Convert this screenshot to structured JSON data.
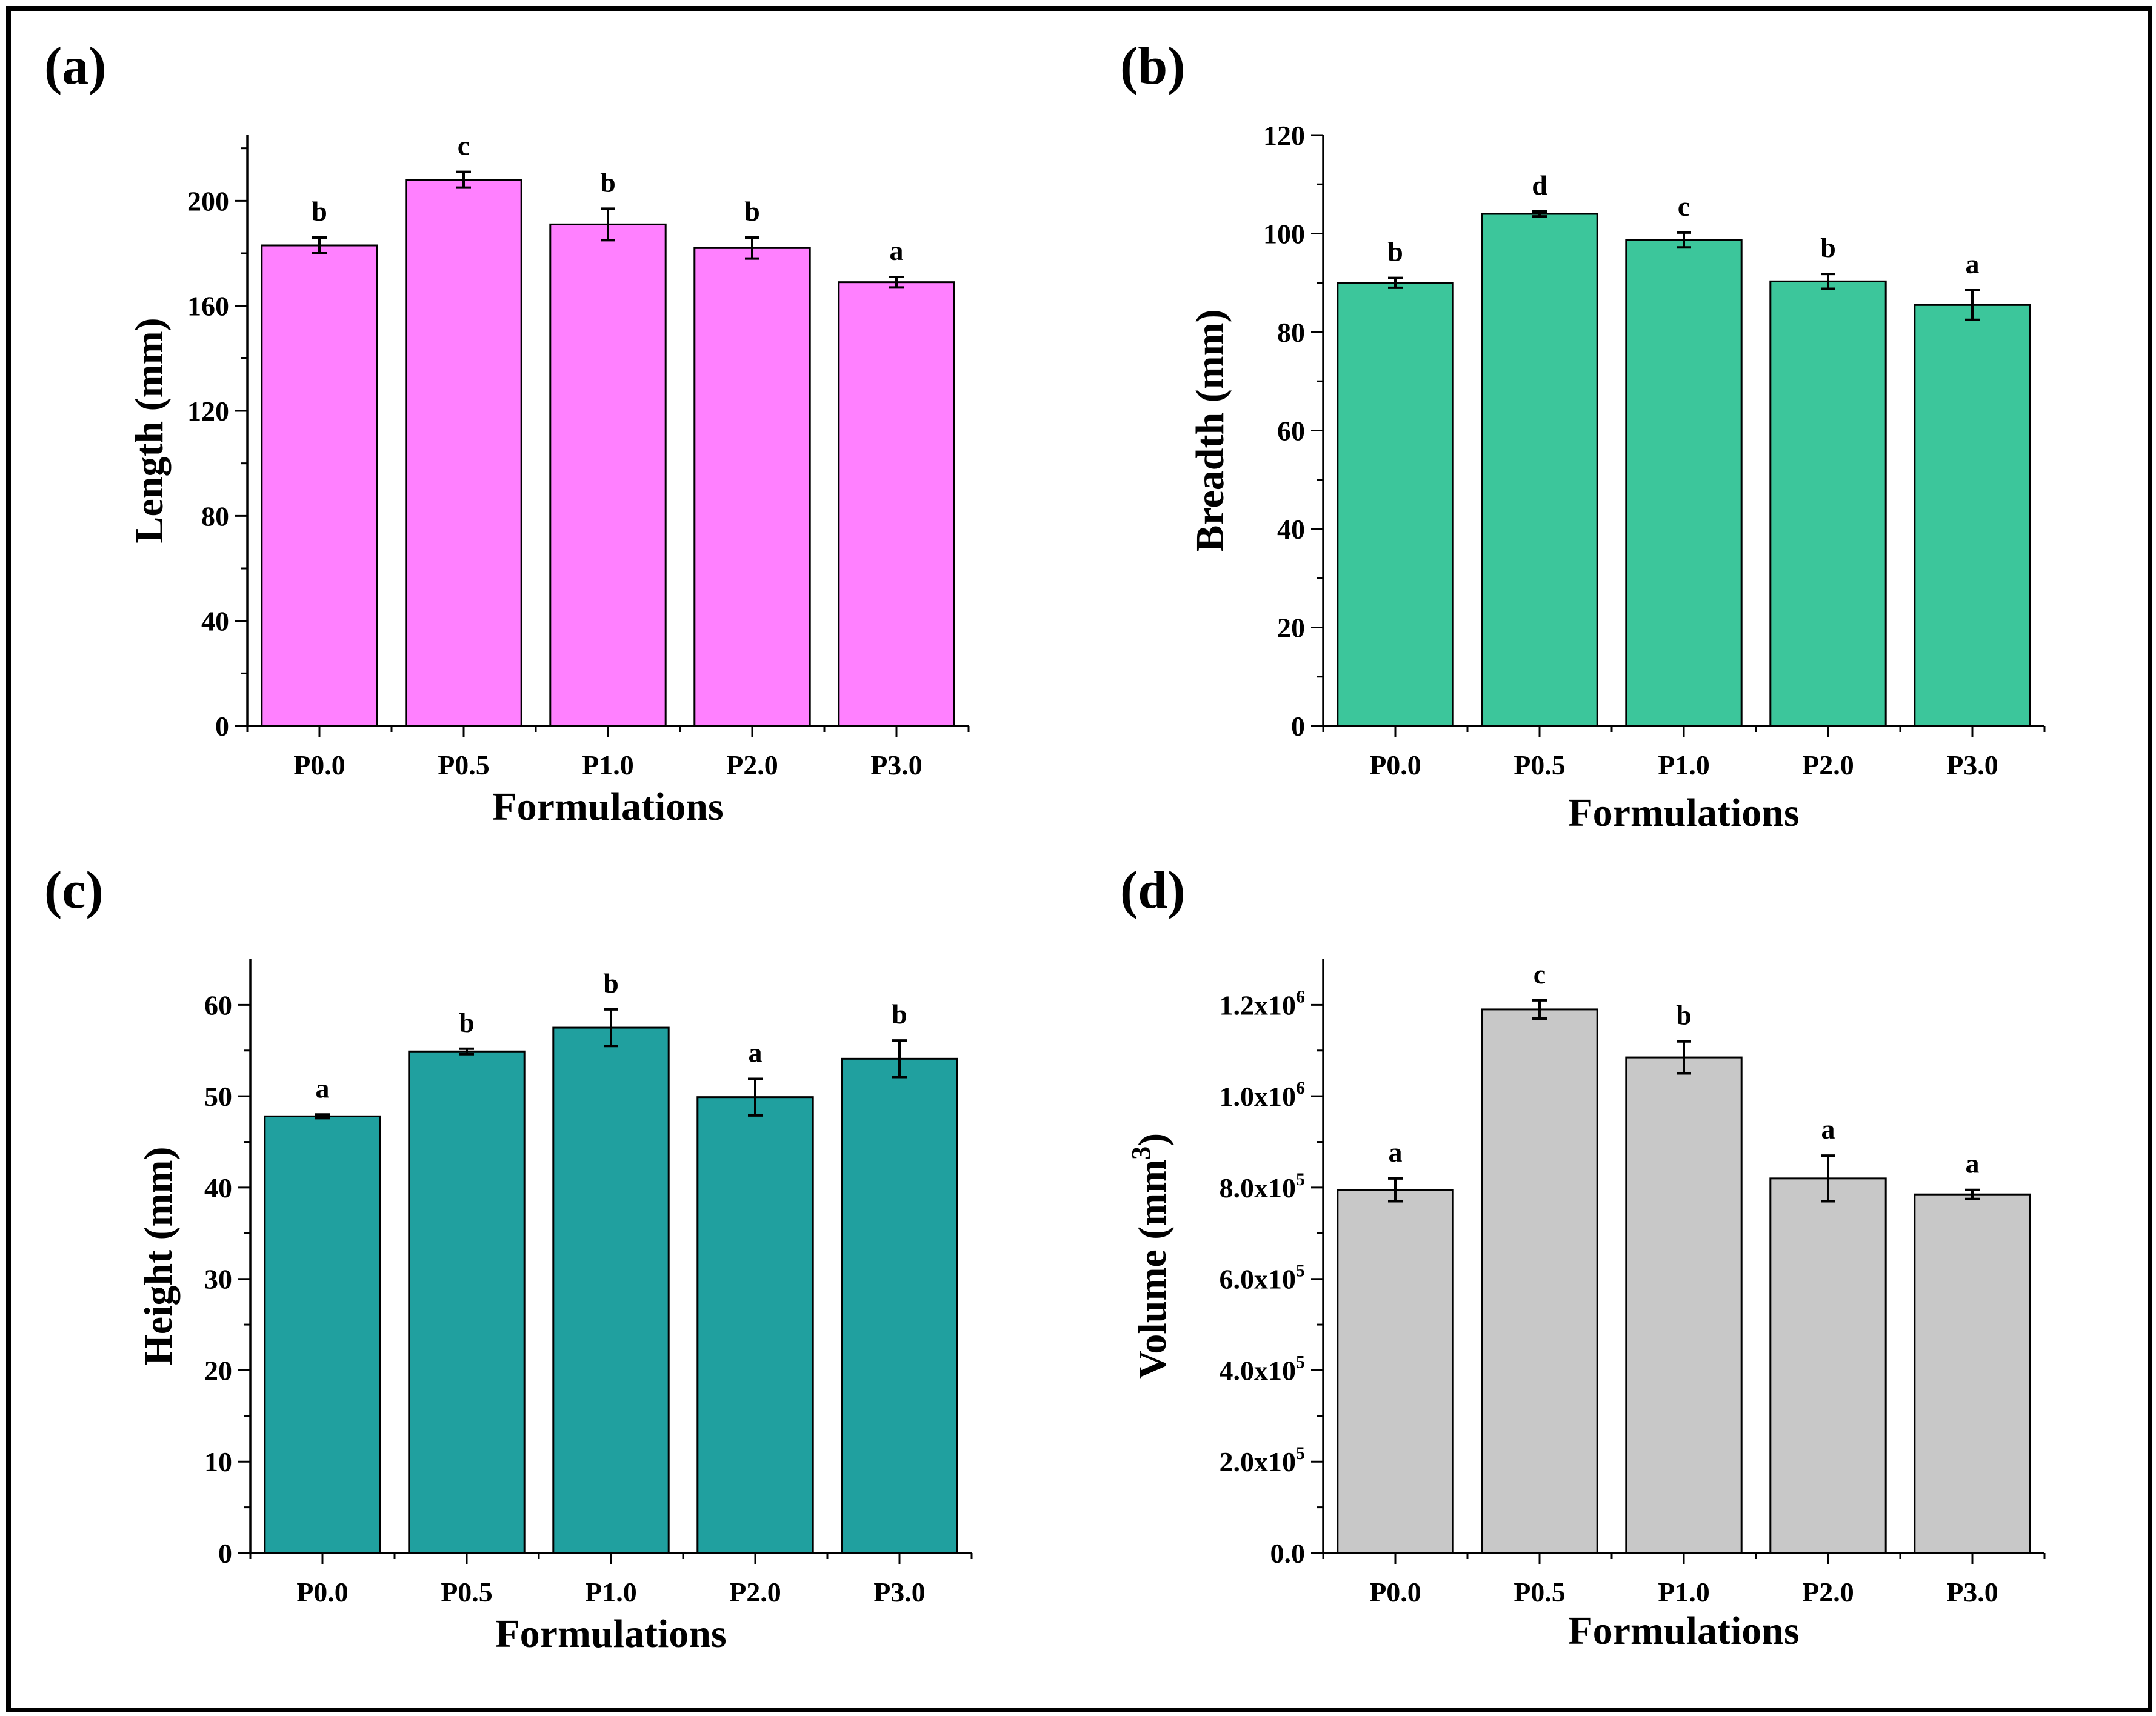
{
  "chart_data": [
    {
      "panel": "(a)",
      "type": "bar",
      "xlabel": "Formulations",
      "ylabel": "Length (mm)",
      "categories": [
        "P0.0",
        "P0.5",
        "P1.0",
        "P2.0",
        "P3.0"
      ],
      "values": [
        183,
        208,
        191,
        182,
        169
      ],
      "errors": [
        3,
        3,
        6,
        4,
        2
      ],
      "significance": [
        "b",
        "c",
        "b",
        "b",
        "a"
      ],
      "ylim": [
        0,
        225
      ],
      "yticks": [
        0,
        40,
        80,
        120,
        160,
        200
      ],
      "ytick_labels": [
        "0",
        "40",
        "80",
        "120",
        "160",
        "200"
      ],
      "color": "#ff80ff"
    },
    {
      "panel": "(b)",
      "type": "bar",
      "xlabel": "Formulations",
      "ylabel": "Breadth (mm)",
      "categories": [
        "P0.0",
        "P0.5",
        "P1.0",
        "P2.0",
        "P3.0"
      ],
      "values": [
        90,
        104,
        98.7,
        90.3,
        85.5
      ],
      "errors": [
        1,
        0.5,
        1.5,
        1.5,
        3
      ],
      "significance": [
        "b",
        "d",
        "c",
        "b",
        "a"
      ],
      "ylim": [
        0,
        120
      ],
      "yticks": [
        0,
        20,
        40,
        60,
        80,
        100,
        120
      ],
      "ytick_labels": [
        "0",
        "20",
        "40",
        "60",
        "80",
        "100",
        "120"
      ],
      "color": "#3cc69b"
    },
    {
      "panel": "(c)",
      "type": "bar",
      "xlabel": "Formulations",
      "ylabel": "Height (mm)",
      "categories": [
        "P0.0",
        "P0.5",
        "P1.0",
        "P2.0",
        "P3.0"
      ],
      "values": [
        47.8,
        54.9,
        57.5,
        49.9,
        54.1
      ],
      "errors": [
        0.2,
        0.3,
        2,
        2,
        2
      ],
      "significance": [
        "a",
        "b",
        "b",
        "a",
        "b"
      ],
      "ylim": [
        0,
        65
      ],
      "yticks": [
        0,
        10,
        20,
        30,
        40,
        50,
        60
      ],
      "ytick_labels": [
        "0",
        "10",
        "20",
        "30",
        "40",
        "50",
        "60"
      ],
      "color": "#20a09f"
    },
    {
      "panel": "(d)",
      "type": "bar",
      "xlabel": "Formulations",
      "ylabel": "Volume (mm3)",
      "categories": [
        "P0.0",
        "P0.5",
        "P1.0",
        "P2.0",
        "P3.0"
      ],
      "values": [
        795000,
        1190000,
        1085000,
        820000,
        785000
      ],
      "errors": [
        25000,
        20000,
        35000,
        50000,
        10000
      ],
      "significance": [
        "a",
        "c",
        "b",
        "a",
        "a"
      ],
      "ylim": [
        0,
        1300000
      ],
      "yticks": [
        0,
        200000,
        400000,
        600000,
        800000,
        1000000,
        1200000
      ],
      "ytick_labels": [
        "0.0",
        "2.0x10^5",
        "4.0x10^5",
        "6.0x10^5",
        "8.0x10^5",
        "1.0x10^6",
        "1.2x10^6"
      ],
      "color": "#c8c8c8"
    }
  ]
}
